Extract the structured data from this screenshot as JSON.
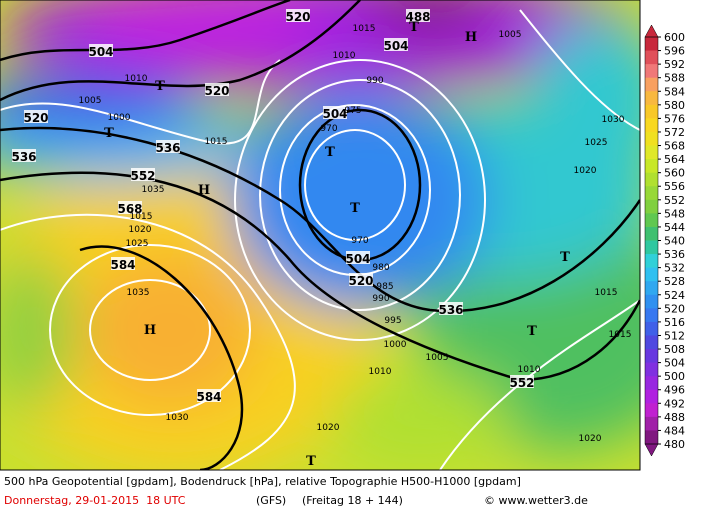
{
  "map": {
    "labels": {
      "geopotential": [
        "504",
        "504",
        "520",
        "520",
        "520",
        "536",
        "536",
        "552",
        "568",
        "584",
        "584",
        "504",
        "504",
        "520",
        "536",
        "552",
        "488"
      ],
      "pressure": [
        "1010",
        "1005",
        "1000",
        "1015",
        "1035",
        "1015",
        "1020",
        "1025",
        "1035",
        "1030",
        "1000",
        "1005",
        "1010",
        "1020",
        "1030",
        "1025",
        "1020",
        "1015",
        "1015",
        "1010",
        "1020",
        "970",
        "975",
        "990",
        "980",
        "985",
        "990",
        "995",
        "970",
        "1005",
        "1010",
        "1015"
      ],
      "centers": [
        "T",
        "T",
        "T",
        "T",
        "T",
        "T",
        "H",
        "H",
        "H",
        "T",
        "T"
      ]
    }
  },
  "legend": {
    "levels": [
      600,
      596,
      592,
      588,
      584,
      580,
      576,
      572,
      568,
      564,
      560,
      556,
      552,
      548,
      544,
      540,
      536,
      532,
      528,
      524,
      520,
      516,
      512,
      508,
      504,
      500,
      496,
      492,
      488,
      484,
      480
    ],
    "colors": [
      "#c8283c",
      "#e0505a",
      "#f07878",
      "#f8a060",
      "#f8b840",
      "#f8c828",
      "#f8d820",
      "#f0e020",
      "#e0e828",
      "#c8e828",
      "#b0e030",
      "#98d838",
      "#80d040",
      "#60c850",
      "#40c070",
      "#30c8a0",
      "#30d0d8",
      "#30c0f0",
      "#30a8f0",
      "#3090f0",
      "#3878f0",
      "#4060e8",
      "#5048e0",
      "#6838e0",
      "#8030e0",
      "#9828e0",
      "#b020e0",
      "#c020d0",
      "#a020a8",
      "#801880"
    ]
  },
  "footer": {
    "line1": "500 hPa Geopotential [gpdam], Bodendruck [hPa], relative Topographie H500-H1000 [gpdam]",
    "date": "Donnerstag, 29-01-2015  18 UTC",
    "model": "(GFS)",
    "run": "(Freitag 18 + 144)",
    "credit": "© www.wetter3.de"
  }
}
